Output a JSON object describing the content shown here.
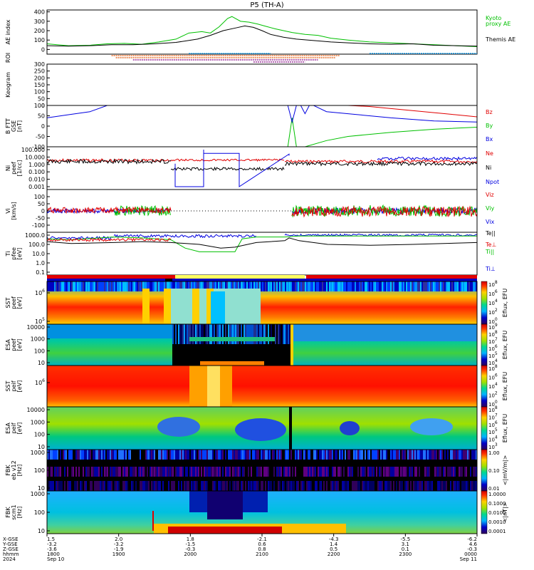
{
  "title": "P5 (TH-A)",
  "colors": {
    "kyoto": "#00c000",
    "themis": "#000000",
    "red": "#e00000",
    "green": "#00c000",
    "blue": "#0000e0",
    "roi1": "#00a0ff",
    "roi2": "#e05000",
    "roi3": "#800080"
  },
  "chart_data": [
    {
      "type": "line",
      "id": "ae",
      "ylabel": "AE index",
      "ylim": [
        -50,
        420
      ],
      "yticks": [
        "400",
        "300",
        "200",
        "100",
        "0"
      ],
      "legend": [
        "Kyoto",
        "proxy AE",
        "Themis AE"
      ],
      "series": [
        {
          "name": "Kyoto proxy AE",
          "x": [
            0,
            0.05,
            0.1,
            0.14,
            0.18,
            0.22,
            0.26,
            0.3,
            0.33,
            0.36,
            0.38,
            0.4,
            0.42,
            0.43,
            0.45,
            0.47,
            0.49,
            0.51,
            0.53,
            0.55,
            0.57,
            0.6,
            0.63,
            0.66,
            0.7,
            0.75,
            0.8,
            0.85,
            0.9,
            0.95,
            1
          ],
          "y": [
            60,
            40,
            45,
            60,
            65,
            55,
            80,
            110,
            175,
            190,
            175,
            240,
            330,
            350,
            300,
            290,
            270,
            245,
            220,
            200,
            180,
            160,
            150,
            120,
            100,
            80,
            70,
            60,
            50,
            40,
            30
          ]
        },
        {
          "name": "Themis AE",
          "x": [
            0,
            0.05,
            0.1,
            0.15,
            0.2,
            0.25,
            0.3,
            0.35,
            0.38,
            0.41,
            0.44,
            0.46,
            0.48,
            0.5,
            0.52,
            0.55,
            0.58,
            0.62,
            0.66,
            0.7,
            0.75,
            0.8,
            0.85,
            0.9,
            0.95,
            1
          ],
          "y": [
            40,
            35,
            40,
            50,
            50,
            60,
            75,
            110,
            150,
            200,
            230,
            250,
            235,
            200,
            160,
            130,
            110,
            95,
            80,
            70,
            60,
            55,
            60,
            45,
            40,
            35
          ]
        }
      ]
    },
    {
      "type": "scatter",
      "id": "roi",
      "ylabel": "ROI",
      "segments": [
        {
          "color": "roi1",
          "row": 0,
          "x0": 0.33,
          "x1": 0.52
        },
        {
          "color": "roi1",
          "row": 0,
          "x0": 0.75,
          "x1": 1
        },
        {
          "color": "roi2",
          "row": 1,
          "x0": 0.15,
          "x1": 0.68
        },
        {
          "color": "roi2",
          "row": 2,
          "x0": 0.16,
          "x1": 0.67
        },
        {
          "color": "roi3",
          "row": 3,
          "x0": 0.2,
          "x1": 0.63
        },
        {
          "color": "roi3",
          "row": 4,
          "x0": 0.48,
          "x1": 0.6
        }
      ]
    },
    {
      "type": "heatmap",
      "id": "keogram",
      "ylabel": "Keogram",
      "ylim": [
        0,
        300
      ],
      "yticks": [
        "300",
        "250",
        "200",
        "150",
        "100",
        "50",
        "0"
      ]
    },
    {
      "type": "line",
      "id": "bfield",
      "ylabel": "B FTT",
      "ylabel2": "GSE",
      "ylabel3": "[nT]",
      "ylim": [
        -100,
        100
      ],
      "yticks": [
        "100",
        "50",
        "0",
        "-50",
        "-100"
      ],
      "legend": [
        "Bz",
        "By",
        "Bx"
      ],
      "series": [
        {
          "name": "Bz",
          "x": [
            0.7,
            0.75,
            0.8,
            0.85,
            0.9,
            0.95,
            1
          ],
          "y": [
            100,
            95,
            85,
            75,
            65,
            55,
            45
          ]
        },
        {
          "name": "By",
          "x": [
            0.56,
            0.57,
            0.58,
            0.6,
            0.65,
            0.7,
            0.8,
            0.9,
            1
          ],
          "y": [
            -100,
            40,
            -100,
            -100,
            -70,
            -50,
            -30,
            -15,
            -5
          ]
        },
        {
          "name": "Bx",
          "x": [
            0,
            0.05,
            0.1,
            0.14,
            0.56,
            0.57,
            0.58,
            0.59,
            0.6,
            0.61,
            0.62,
            0.63,
            0.65,
            0.7,
            0.8,
            0.9,
            1
          ],
          "y": [
            40,
            55,
            70,
            100,
            100,
            20,
            100,
            100,
            60,
            100,
            100,
            90,
            70,
            60,
            40,
            25,
            20
          ]
        }
      ]
    },
    {
      "type": "line",
      "id": "density",
      "ylabel": "Ni",
      "ylabel2": "peef",
      "ylabel3": "[1/cc]",
      "yticks": [
        "100.000",
        "10.000",
        "1.000",
        "0.100",
        "0.010",
        "0.001"
      ],
      "legend": [
        "Ne",
        "Ni",
        "Npot"
      ]
    },
    {
      "type": "line",
      "id": "velocity",
      "ylabel": "Vi",
      "ylabel2": "[km/s]",
      "ylim": [
        -150,
        150
      ],
      "yticks": [
        "100",
        "50",
        "0",
        "-50",
        "-100"
      ],
      "legend": [
        "Viz",
        "Viy",
        "Vix"
      ]
    },
    {
      "type": "line",
      "id": "temperature",
      "ylabel": "Ti",
      "ylabel2": "pfee",
      "ylabel3": "[eV]",
      "yticks": [
        "1000.0",
        "100.0",
        "10.0",
        "1.0",
        "0.1"
      ],
      "legend": [
        "Te||",
        "Te⊥",
        "Ti||",
        "Ti⊥"
      ]
    },
    {
      "type": "heatmap",
      "id": "sst_e",
      "ylabel": "SST",
      "ylabel2": "peef",
      "ylabel3": "[eV]",
      "yticks": [
        "10^6",
        "10^5"
      ],
      "cbar_ticks": [
        "10^8",
        "10^6",
        "10^4",
        "10^2",
        "10^0"
      ],
      "cbar_label": "Eflux, EFU"
    },
    {
      "type": "heatmap",
      "id": "esa_e",
      "ylabel": "ESA",
      "ylabel2": "peef",
      "ylabel3": "[eV]",
      "yticks": [
        "10000",
        "1000",
        "100",
        "10"
      ],
      "cbar_ticks": [
        "10^9",
        "10^8",
        "10^7",
        "10^6",
        "10^5",
        "10^4"
      ],
      "cbar_label": "Eflux, EFU"
    },
    {
      "type": "heatmap",
      "id": "sst_i",
      "ylabel": "SST",
      "ylabel2": "peif",
      "ylabel3": "[eV]",
      "yticks": [
        "10^6"
      ],
      "cbar_ticks": [
        "10^8",
        "10^6",
        "10^4",
        "10^2",
        "10^0"
      ],
      "cbar_label": "Eflux, EFU"
    },
    {
      "type": "heatmap",
      "id": "esa_i",
      "ylabel": "ESA",
      "ylabel2": "peif",
      "ylabel3": "[eV]",
      "yticks": [
        "10000",
        "1000",
        "100",
        "10"
      ],
      "cbar_ticks": [
        "10^8",
        "10^7",
        "10^6",
        "10^5",
        "10^4",
        "10^3"
      ],
      "cbar_label": "Eflux, EFU"
    },
    {
      "type": "heatmap",
      "id": "fbk_e",
      "ylabel": "FBK",
      "ylabel2": "eb v12",
      "ylabel3": "[Hz]",
      "yticks": [
        "1000",
        "100",
        "10"
      ],
      "cbar_ticks": [
        "1.00",
        "0.10",
        "0.01"
      ],
      "cbar_label": "<|mV/m|>"
    },
    {
      "type": "heatmap",
      "id": "fbk_b",
      "ylabel": "FBK",
      "ylabel2": "scm1",
      "ylabel3": "[Hz]",
      "yticks": [
        "1000",
        "100",
        "10"
      ],
      "cbar_ticks": [
        "1.0000",
        "0.1000",
        "0.0100",
        "0.0010",
        "0.0001"
      ],
      "cbar_label": "<|nT|>"
    }
  ],
  "xaxis": {
    "row_labels": [
      "X-GSE",
      "Y-GSE",
      "Z-GSE",
      "hhmm",
      "2024"
    ],
    "columns": [
      {
        "vals": [
          "1.5",
          "-3.2",
          "-3.6",
          "1800",
          "Sep 10"
        ]
      },
      {
        "vals": [
          "2.0",
          "-3.2",
          "-1.9",
          "1900",
          ""
        ]
      },
      {
        "vals": [
          "1.8",
          "-1.5",
          "-0.3",
          "2000",
          ""
        ]
      },
      {
        "vals": [
          "-2.1",
          "0.6",
          "0.8",
          "2100",
          ""
        ]
      },
      {
        "vals": [
          "-4.3",
          "1.4",
          "0.5",
          "2200",
          ""
        ]
      },
      {
        "vals": [
          "-5.5",
          "3.1",
          "0.1",
          "2300",
          ""
        ]
      },
      {
        "vals": [
          "-6.2",
          "4.6",
          "-0.3",
          "0000",
          "Sep 11"
        ]
      }
    ]
  }
}
